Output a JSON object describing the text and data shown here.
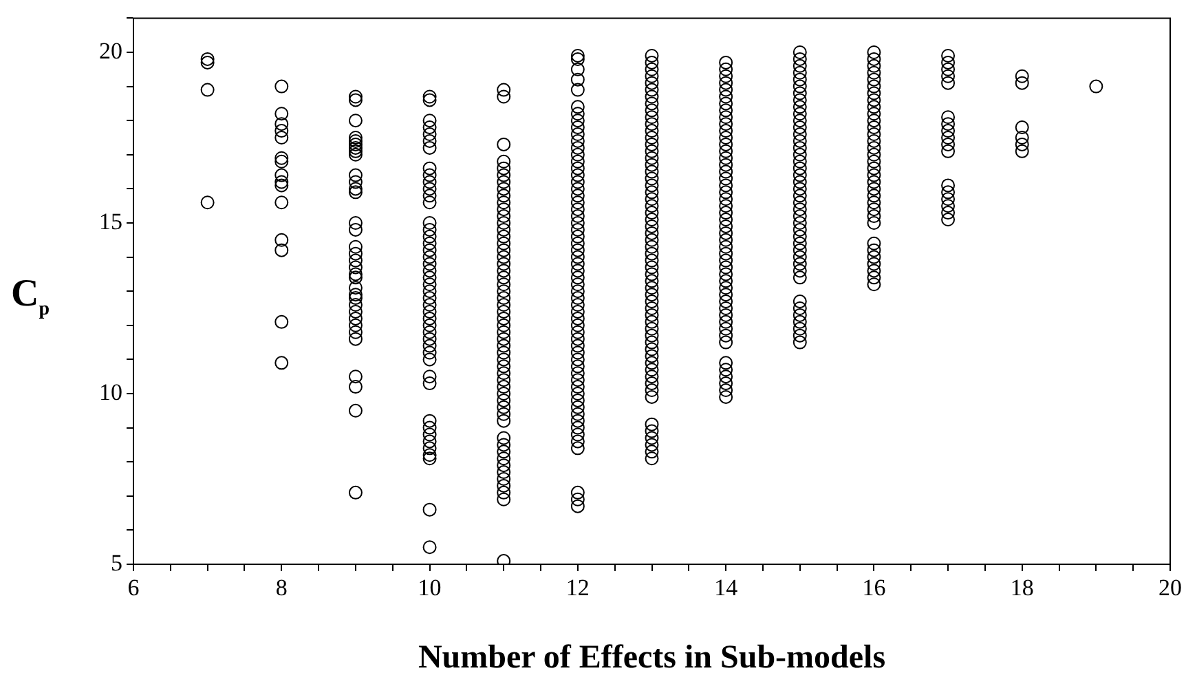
{
  "chart_data": {
    "type": "scatter",
    "xlabel": "Number of Effects in Sub-models",
    "ylabel": "C$_{p}$",
    "xlim": [
      6,
      20
    ],
    "ylim": [
      5,
      21
    ],
    "xticks": [
      6,
      {
        "value": 6.5,
        "label": null
      },
      {
        "value": 7,
        "label": null
      },
      {
        "value": 7.5,
        "label": null
      },
      8,
      {
        "value": 8.5,
        "label": null
      },
      {
        "value": 9,
        "label": null
      },
      {
        "value": 9.5,
        "label": null
      },
      10,
      {
        "value": 10.5,
        "label": null
      },
      {
        "value": 11,
        "label": null
      },
      {
        "value": 11.5,
        "label": null
      },
      12,
      {
        "value": 12.5,
        "label": null
      },
      {
        "value": 13,
        "label": null
      },
      {
        "value": 13.5,
        "label": null
      },
      14,
      {
        "value": 14.5,
        "label": null
      },
      {
        "value": 15,
        "label": null
      },
      {
        "value": 15.5,
        "label": null
      },
      16,
      {
        "value": 16.5,
        "label": null
      },
      {
        "value": 17,
        "label": null
      },
      {
        "value": 17.5,
        "label": null
      },
      18,
      {
        "value": 18.5,
        "label": null
      },
      {
        "value": 19,
        "label": null
      },
      {
        "value": 19.5,
        "label": null
      },
      20
    ],
    "yticks": [
      5,
      {
        "value": 6,
        "label": null
      },
      {
        "value": 7,
        "label": null
      },
      {
        "value": 8,
        "label": null
      },
      {
        "value": 9,
        "label": null
      },
      10,
      {
        "value": 11,
        "label": null
      },
      {
        "value": 12,
        "label": null
      },
      {
        "value": 13,
        "label": null
      },
      {
        "value": 14,
        "label": null
      },
      15,
      {
        "value": 16,
        "label": null
      },
      {
        "value": 17,
        "label": null
      },
      {
        "value": 18,
        "label": null
      },
      {
        "value": 19,
        "label": null
      },
      20,
      {
        "value": 21,
        "label": null
      }
    ],
    "marker": "circle",
    "legend": false,
    "grid": false,
    "series": [
      {
        "color": "#000000",
        "x": [
          7,
          7,
          7,
          7
        ],
        "values": [
          19.8,
          19.7,
          18.9,
          15.6
        ]
      },
      {
        "color": "#000000",
        "x": [
          8,
          8,
          8,
          8,
          8,
          8,
          8,
          8,
          8,
          8,
          8,
          8,
          8,
          8,
          8
        ],
        "values": [
          19.0,
          18.2,
          17.9,
          17.7,
          17.5,
          16.9,
          16.8,
          16.4,
          16.2,
          16.1,
          15.6,
          14.5,
          14.2,
          12.1,
          10.9
        ]
      },
      {
        "color": "#000000",
        "x": [
          9,
          9,
          9,
          9,
          9,
          9,
          9,
          9,
          9,
          9,
          9,
          9,
          9,
          9,
          9,
          9,
          9,
          9,
          9,
          9,
          9,
          9,
          9,
          9,
          9,
          9,
          9,
          9,
          9,
          9,
          9,
          9,
          9,
          9
        ],
        "values": [
          18.7,
          18.6,
          18.0,
          17.5,
          17.4,
          17.3,
          17.2,
          17.1,
          17.0,
          16.4,
          16.2,
          16.0,
          15.9,
          15.0,
          14.8,
          14.3,
          14.1,
          13.9,
          13.7,
          13.5,
          13.4,
          13.1,
          12.9,
          12.8,
          12.6,
          12.4,
          12.2,
          12.0,
          11.8,
          11.6,
          10.5,
          10.2,
          9.5,
          7.1
        ]
      },
      {
        "color": "#000000",
        "x": [
          10,
          10,
          10,
          10,
          10,
          10,
          10,
          10,
          10,
          10,
          10,
          10,
          10,
          10,
          10,
          10,
          10,
          10,
          10,
          10,
          10,
          10,
          10,
          10,
          10,
          10,
          10,
          10,
          10,
          10,
          10,
          10,
          10,
          10,
          10,
          10,
          10,
          10,
          10,
          10,
          10,
          10,
          10,
          10,
          10
        ],
        "values": [
          18.7,
          18.6,
          18.0,
          17.8,
          17.6,
          17.4,
          17.2,
          16.6,
          16.4,
          16.2,
          16.0,
          15.8,
          15.6,
          15.0,
          14.8,
          14.6,
          14.4,
          14.2,
          14.0,
          13.8,
          13.6,
          13.4,
          13.2,
          13.0,
          12.8,
          12.6,
          12.4,
          12.2,
          12.0,
          11.8,
          11.6,
          11.4,
          11.2,
          11.0,
          10.5,
          10.3,
          9.2,
          9.0,
          8.8,
          8.6,
          8.4,
          8.2,
          8.1,
          6.6,
          5.5
        ]
      },
      {
        "color": "#000000",
        "x": [
          11,
          11,
          11,
          11,
          11,
          11,
          11,
          11,
          11,
          11,
          11,
          11,
          11,
          11,
          11,
          11,
          11,
          11,
          11,
          11,
          11,
          11,
          11,
          11,
          11,
          11,
          11,
          11,
          11,
          11,
          11,
          11,
          11,
          11,
          11,
          11,
          11,
          11,
          11,
          11,
          11,
          11,
          11,
          11,
          11,
          11,
          11,
          11,
          11,
          11,
          11,
          11,
          11
        ],
        "values": [
          18.9,
          18.7,
          17.3,
          16.8,
          16.6,
          16.4,
          16.2,
          16.0,
          15.8,
          15.6,
          15.4,
          15.2,
          15.0,
          14.8,
          14.6,
          14.4,
          14.2,
          14.0,
          13.8,
          13.6,
          13.4,
          13.2,
          13.0,
          12.8,
          12.6,
          12.4,
          12.2,
          12.0,
          11.8,
          11.6,
          11.4,
          11.2,
          11.0,
          10.8,
          10.6,
          10.4,
          10.2,
          10.0,
          9.8,
          9.6,
          9.4,
          9.2,
          8.7,
          8.5,
          8.3,
          8.1,
          7.9,
          7.7,
          7.5,
          7.3,
          7.1,
          6.9,
          5.1
        ]
      },
      {
        "color": "#000000",
        "x": [
          12,
          12,
          12,
          12,
          12,
          12,
          12,
          12,
          12,
          12,
          12,
          12,
          12,
          12,
          12,
          12,
          12,
          12,
          12,
          12,
          12,
          12,
          12,
          12,
          12,
          12,
          12,
          12,
          12,
          12,
          12,
          12,
          12,
          12,
          12,
          12,
          12,
          12,
          12,
          12,
          12,
          12,
          12,
          12,
          12,
          12,
          12,
          12,
          12,
          12,
          12,
          12,
          12,
          12,
          12,
          12,
          12,
          12,
          12
        ],
        "values": [
          19.9,
          19.8,
          19.5,
          19.2,
          18.9,
          18.4,
          18.2,
          18.0,
          17.8,
          17.6,
          17.4,
          17.2,
          17.0,
          16.8,
          16.6,
          16.4,
          16.2,
          16.0,
          15.8,
          15.6,
          15.4,
          15.2,
          15.0,
          14.8,
          14.6,
          14.4,
          14.2,
          14.0,
          13.8,
          13.6,
          13.4,
          13.2,
          13.0,
          12.8,
          12.6,
          12.4,
          12.2,
          12.0,
          11.8,
          11.6,
          11.4,
          11.2,
          11.0,
          10.8,
          10.6,
          10.4,
          10.2,
          10.0,
          9.8,
          9.6,
          9.4,
          9.2,
          9.0,
          8.8,
          8.6,
          8.4,
          7.1,
          6.9,
          6.7
        ]
      },
      {
        "color": "#000000",
        "x": [
          13,
          13,
          13,
          13,
          13,
          13,
          13,
          13,
          13,
          13,
          13,
          13,
          13,
          13,
          13,
          13,
          13,
          13,
          13,
          13,
          13,
          13,
          13,
          13,
          13,
          13,
          13,
          13,
          13,
          13,
          13,
          13,
          13,
          13,
          13,
          13,
          13,
          13,
          13,
          13,
          13,
          13,
          13,
          13,
          13,
          13,
          13,
          13,
          13,
          13,
          13,
          13,
          13,
          13,
          13,
          13,
          13
        ],
        "values": [
          19.9,
          19.7,
          19.5,
          19.3,
          19.1,
          18.9,
          18.7,
          18.5,
          18.3,
          18.1,
          17.9,
          17.7,
          17.5,
          17.3,
          17.1,
          16.9,
          16.7,
          16.5,
          16.3,
          16.1,
          15.9,
          15.7,
          15.5,
          15.3,
          15.1,
          14.9,
          14.7,
          14.5,
          14.3,
          14.1,
          13.9,
          13.7,
          13.5,
          13.3,
          13.1,
          12.9,
          12.7,
          12.5,
          12.3,
          12.1,
          11.9,
          11.7,
          11.5,
          11.3,
          11.1,
          10.9,
          10.7,
          10.5,
          10.3,
          10.1,
          9.9,
          9.1,
          8.9,
          8.7,
          8.5,
          8.3,
          8.1
        ]
      },
      {
        "color": "#000000",
        "x": [
          14,
          14,
          14,
          14,
          14,
          14,
          14,
          14,
          14,
          14,
          14,
          14,
          14,
          14,
          14,
          14,
          14,
          14,
          14,
          14,
          14,
          14,
          14,
          14,
          14,
          14,
          14,
          14,
          14,
          14,
          14,
          14,
          14,
          14,
          14,
          14,
          14,
          14,
          14,
          14,
          14,
          14,
          14,
          14,
          14,
          14,
          14,
          14
        ],
        "values": [
          19.7,
          19.5,
          19.3,
          19.1,
          18.9,
          18.7,
          18.5,
          18.3,
          18.1,
          17.9,
          17.7,
          17.5,
          17.3,
          17.1,
          16.9,
          16.7,
          16.5,
          16.3,
          16.1,
          15.9,
          15.7,
          15.5,
          15.3,
          15.1,
          14.9,
          14.7,
          14.5,
          14.3,
          14.1,
          13.9,
          13.7,
          13.5,
          13.3,
          13.1,
          12.9,
          12.7,
          12.5,
          12.3,
          12.1,
          11.9,
          11.7,
          11.5,
          10.9,
          10.7,
          10.5,
          10.3,
          10.1,
          9.9
        ]
      },
      {
        "color": "#000000",
        "x": [
          15,
          15,
          15,
          15,
          15,
          15,
          15,
          15,
          15,
          15,
          15,
          15,
          15,
          15,
          15,
          15,
          15,
          15,
          15,
          15,
          15,
          15,
          15,
          15,
          15,
          15,
          15,
          15,
          15,
          15,
          15,
          15,
          15,
          15,
          15,
          15,
          15,
          15,
          15,
          15,
          15
        ],
        "values": [
          20.0,
          19.8,
          19.6,
          19.4,
          19.2,
          19.0,
          18.8,
          18.6,
          18.4,
          18.2,
          18.0,
          17.8,
          17.6,
          17.4,
          17.2,
          17.0,
          16.8,
          16.6,
          16.4,
          16.2,
          16.0,
          15.8,
          15.6,
          15.4,
          15.2,
          15.0,
          14.8,
          14.6,
          14.4,
          14.2,
          14.0,
          13.8,
          13.6,
          13.4,
          12.7,
          12.5,
          12.3,
          12.1,
          11.9,
          11.7,
          11.5
        ]
      },
      {
        "color": "#000000",
        "x": [
          16,
          16,
          16,
          16,
          16,
          16,
          16,
          16,
          16,
          16,
          16,
          16,
          16,
          16,
          16,
          16,
          16,
          16,
          16,
          16,
          16,
          16,
          16,
          16,
          16,
          16,
          16,
          16,
          16,
          16,
          16,
          16,
          16
        ],
        "values": [
          20.0,
          19.8,
          19.6,
          19.4,
          19.2,
          19.0,
          18.8,
          18.6,
          18.4,
          18.2,
          18.0,
          17.8,
          17.6,
          17.4,
          17.2,
          17.0,
          16.8,
          16.6,
          16.4,
          16.2,
          16.0,
          15.8,
          15.6,
          15.4,
          15.2,
          15.0,
          14.4,
          14.2,
          14.0,
          13.8,
          13.6,
          13.4,
          13.2
        ]
      },
      {
        "color": "#000000",
        "x": [
          17,
          17,
          17,
          17,
          17,
          17,
          17,
          17,
          17,
          17,
          17,
          17,
          17,
          17,
          17,
          17,
          17
        ],
        "values": [
          19.9,
          19.7,
          19.5,
          19.3,
          19.1,
          18.1,
          17.9,
          17.7,
          17.5,
          17.3,
          17.1,
          16.1,
          15.9,
          15.7,
          15.5,
          15.3,
          15.1
        ]
      },
      {
        "color": "#000000",
        "x": [
          18,
          18,
          18,
          18,
          18,
          18
        ],
        "values": [
          19.3,
          19.1,
          17.8,
          17.5,
          17.3,
          17.1
        ]
      },
      {
        "color": "#000000",
        "x": [
          19
        ],
        "values": [
          19.0
        ]
      }
    ]
  }
}
